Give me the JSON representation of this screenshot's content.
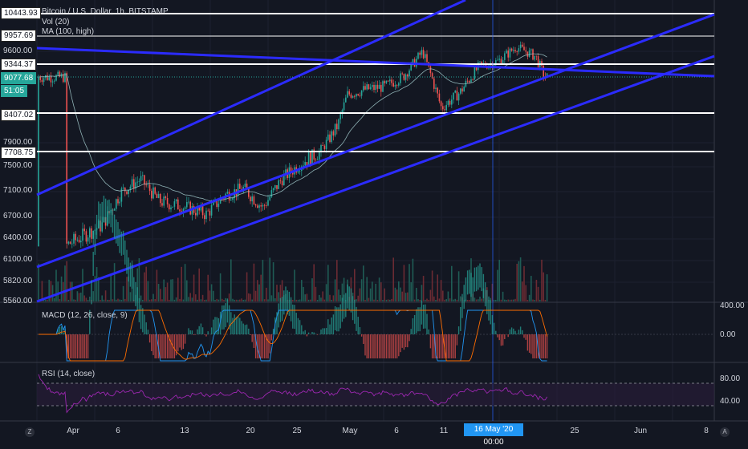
{
  "header": {
    "symbol": "Bitcoin / U.S. Dollar, 1h, BITSTAMP",
    "vol": "Vol (20)",
    "ma": "MA (100, high)"
  },
  "price_axis": {
    "ticks": [
      "9600.00",
      "7900.00",
      "7500.00",
      "7100.00",
      "6700.00",
      "6400.00",
      "6100.00",
      "5820.00",
      "5560.00"
    ],
    "tags": [
      "10443.93",
      "9957.69",
      "9344.37",
      "8407.02",
      "7708.75"
    ],
    "current_price": "9077.68",
    "countdown": "51:05"
  },
  "macd": {
    "label": "MACD (12, 26, close, 9)",
    "ticks": [
      "400.00",
      "0.00"
    ]
  },
  "rsi": {
    "label": "RSI (14, close)",
    "ticks": [
      "80.00",
      "40.00"
    ]
  },
  "time_axis": {
    "labels": [
      "Apr",
      "6",
      "13",
      "20",
      "25",
      "May",
      "6",
      "11",
      "25",
      "Jun",
      "8"
    ],
    "cursor": "16 May '20   00:00"
  },
  "corner": {
    "left": "Z",
    "right": "A"
  },
  "colors": {
    "background": "#131722",
    "channel": "#2b2bff",
    "level": "#ffffff",
    "up": "#26a69a",
    "down": "#ef5350",
    "macd": "#2196f3",
    "signal": "#ff6d00",
    "rsi": "#9c27b0",
    "ma": "#9cc2c4"
  },
  "chart_data": {
    "type": "line",
    "series_kind": "candlestick",
    "ylim": [
      5560,
      10443.93
    ],
    "price_path": [
      [
        "2020-03-31",
        6300
      ],
      [
        "2020-04-02",
        6450
      ],
      [
        "2020-04-04",
        6600
      ],
      [
        "2020-04-06",
        7100
      ],
      [
        "2020-04-08",
        7300
      ],
      [
        "2020-04-10",
        6950
      ],
      [
        "2020-04-13",
        6850
      ],
      [
        "2020-04-15",
        6750
      ],
      [
        "2020-04-17",
        7050
      ],
      [
        "2020-04-19",
        7150
      ],
      [
        "2020-04-21",
        6850
      ],
      [
        "2020-04-23",
        7300
      ],
      [
        "2020-04-25",
        7550
      ],
      [
        "2020-04-27",
        7700
      ],
      [
        "2020-04-29",
        8200
      ],
      [
        "2020-04-30",
        8750
      ],
      [
        "2020-05-02",
        8850
      ],
      [
        "2020-05-04",
        8900
      ],
      [
        "2020-05-06",
        9100
      ],
      [
        "2020-05-08",
        9600
      ],
      [
        "2020-05-10",
        8500
      ],
      [
        "2020-05-12",
        8800
      ],
      [
        "2020-05-14",
        9300
      ],
      [
        "2020-05-16",
        9400
      ],
      [
        "2020-05-18",
        9700
      ],
      [
        "2020-05-20",
        9500
      ],
      [
        "2020-05-21",
        9077.68
      ]
    ],
    "horizontal_levels": [
      10443.93,
      9957.69,
      9344.37,
      8407.02,
      7708.75
    ],
    "ma": {
      "name": "MA (100, high)"
    },
    "indicators": {
      "macd": {
        "name": "MACD (12, 26, close, 9)"
      },
      "rsi": {
        "name": "RSI (14, close)",
        "bands": [
          70,
          30
        ]
      }
    },
    "grid": true
  }
}
